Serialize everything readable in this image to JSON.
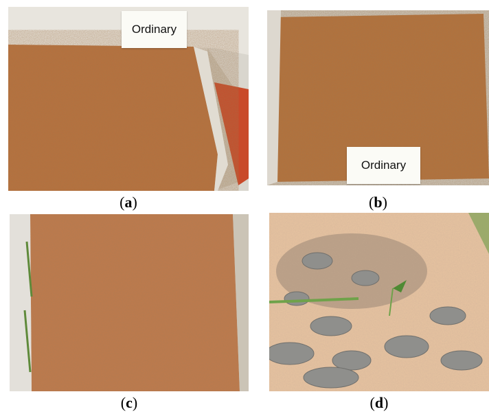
{
  "figure": {
    "panels": [
      {
        "id": "a",
        "caption_open": "(",
        "caption_letter": "a",
        "caption_close": ")",
        "sign_text": "Ordinary"
      },
      {
        "id": "b",
        "caption_open": "(",
        "caption_letter": "b",
        "caption_close": ")",
        "sign_text": "Ordinary"
      },
      {
        "id": "c",
        "caption_open": "(",
        "caption_letter": "c",
        "caption_close": ")"
      },
      {
        "id": "d",
        "caption_open": "(",
        "caption_letter": "d",
        "caption_close": ")"
      }
    ]
  }
}
